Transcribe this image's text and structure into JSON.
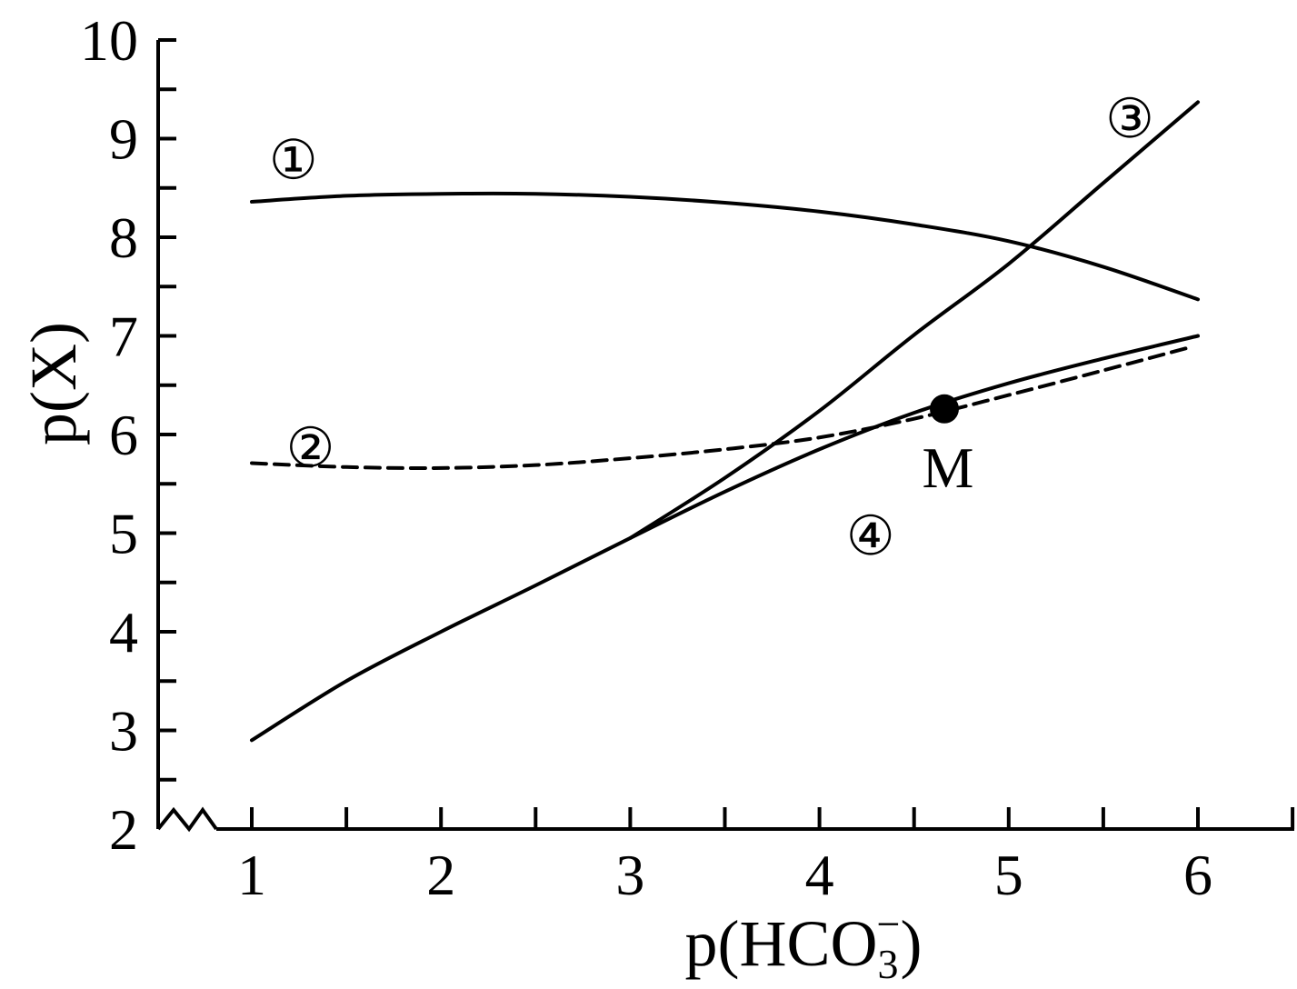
{
  "chart_data": {
    "type": "line",
    "xlabel": "p(HCO3−)",
    "xlabel_parts": {
      "main": "p(HCO",
      "sub": "3",
      "sup": "−",
      "close": ")"
    },
    "ylabel": "p(X)",
    "xlim": [
      0.55,
      6.55
    ],
    "ylim": [
      2,
      10
    ],
    "x_ticks": [
      1,
      2,
      3,
      4,
      5,
      6
    ],
    "y_ticks": [
      2,
      3,
      4,
      5,
      6,
      7,
      8,
      9,
      10
    ],
    "y_axis_break": true,
    "grid": false,
    "series": [
      {
        "name": "①",
        "style": "solid",
        "x": [
          1,
          1.5,
          2,
          2.5,
          3,
          3.5,
          4,
          4.5,
          5,
          5.5,
          6
        ],
        "y": [
          8.36,
          8.42,
          8.44,
          8.44,
          8.41,
          8.35,
          8.26,
          8.13,
          7.96,
          7.7,
          7.37
        ]
      },
      {
        "name": "②",
        "style": "dashed",
        "x": [
          1,
          1.5,
          2,
          2.5,
          3,
          3.5,
          4,
          4.5,
          5,
          5.5,
          5.95
        ],
        "y": [
          5.71,
          5.67,
          5.66,
          5.69,
          5.76,
          5.85,
          5.97,
          6.16,
          6.4,
          6.65,
          6.88
        ]
      },
      {
        "name": "③",
        "style": "solid",
        "x": [
          3,
          3.5,
          4,
          4.5,
          5,
          5.5,
          6
        ],
        "y": [
          4.95,
          5.56,
          6.24,
          7.01,
          7.73,
          8.55,
          9.37
        ]
      },
      {
        "name": "④",
        "style": "solid",
        "x": [
          1,
          1.5,
          2,
          2.5,
          3,
          3.5,
          4,
          4.5,
          5,
          5.5,
          6
        ],
        "y": [
          2.9,
          3.5,
          4.0,
          4.47,
          4.95,
          5.42,
          5.85,
          6.22,
          6.52,
          6.77,
          7.0
        ]
      }
    ],
    "curve_labels": [
      {
        "text": "①",
        "x": 1.22,
        "y": 8.78
      },
      {
        "text": "②",
        "x": 1.31,
        "y": 5.86
      },
      {
        "text": "③",
        "x": 5.64,
        "y": 9.2
      },
      {
        "text": "④",
        "x": 4.27,
        "y": 4.97
      }
    ],
    "annotations": [
      {
        "label": "M",
        "x": 4.66,
        "y": 6.26
      }
    ]
  }
}
